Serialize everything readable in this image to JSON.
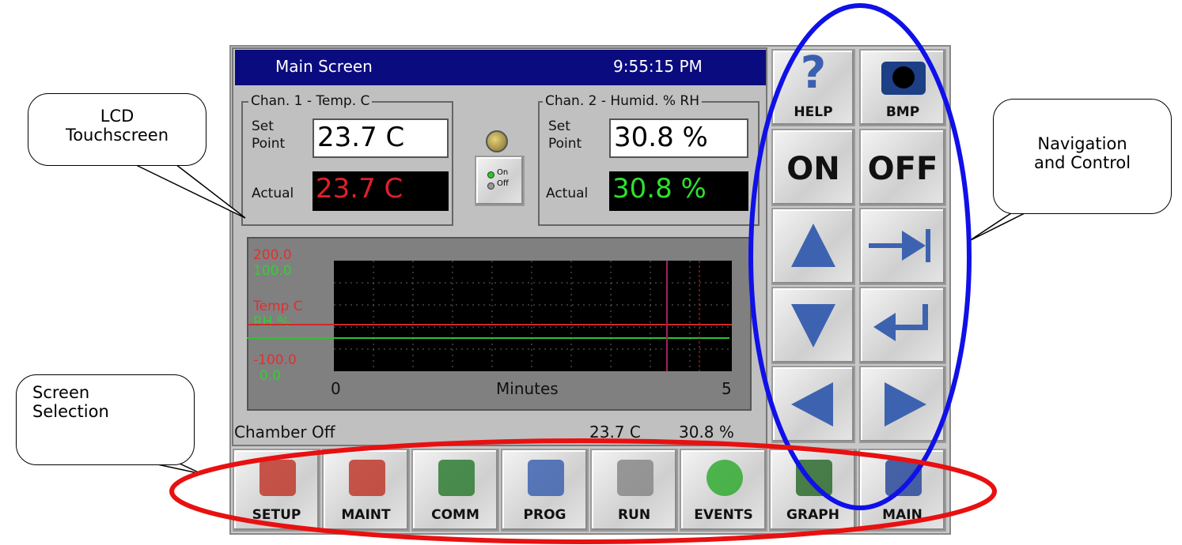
{
  "callouts": {
    "lcd": [
      "LCD",
      "Touchscreen"
    ],
    "navigation": [
      "Navigation",
      "and Control"
    ],
    "screen_selection": [
      "Screen",
      "Selection"
    ]
  },
  "screen": {
    "title": "Main Screen",
    "time": "9:55:15 PM",
    "channel1": {
      "label": "Chan. 1 - Temp. C",
      "set_label": [
        "Set",
        "Point"
      ],
      "set_point": "23.7 C",
      "actual_label": "Actual",
      "actual": "23.7 C"
    },
    "channel2": {
      "label": "Chan. 2 - Humid. % RH",
      "set_label": [
        "Set",
        "Point"
      ],
      "set_point": "30.8 %",
      "actual_label": "Actual",
      "actual": "30.8 %"
    },
    "toggle": [
      "On",
      "Off"
    ],
    "graph": {
      "temp_max": "200.0",
      "rh_max": "100.0",
      "temp_label": "Temp C",
      "rh_label": "RH %",
      "temp_min": "-100.0",
      "rh_min": "0.0",
      "x_start": "0",
      "x_label": "Minutes",
      "x_end": "5"
    },
    "status": {
      "state": "Chamber Off",
      "temp": "23.7 C",
      "rh": "30.8 %"
    }
  },
  "side_buttons": {
    "help_icon": "?",
    "help": "HELP",
    "bmp": "BMP",
    "on": "ON",
    "off": "OFF"
  },
  "bottom_buttons": [
    "SETUP",
    "MAINT",
    "COMM",
    "PROG",
    "RUN",
    "EVENTS",
    "GRAPH",
    "MAIN"
  ]
}
